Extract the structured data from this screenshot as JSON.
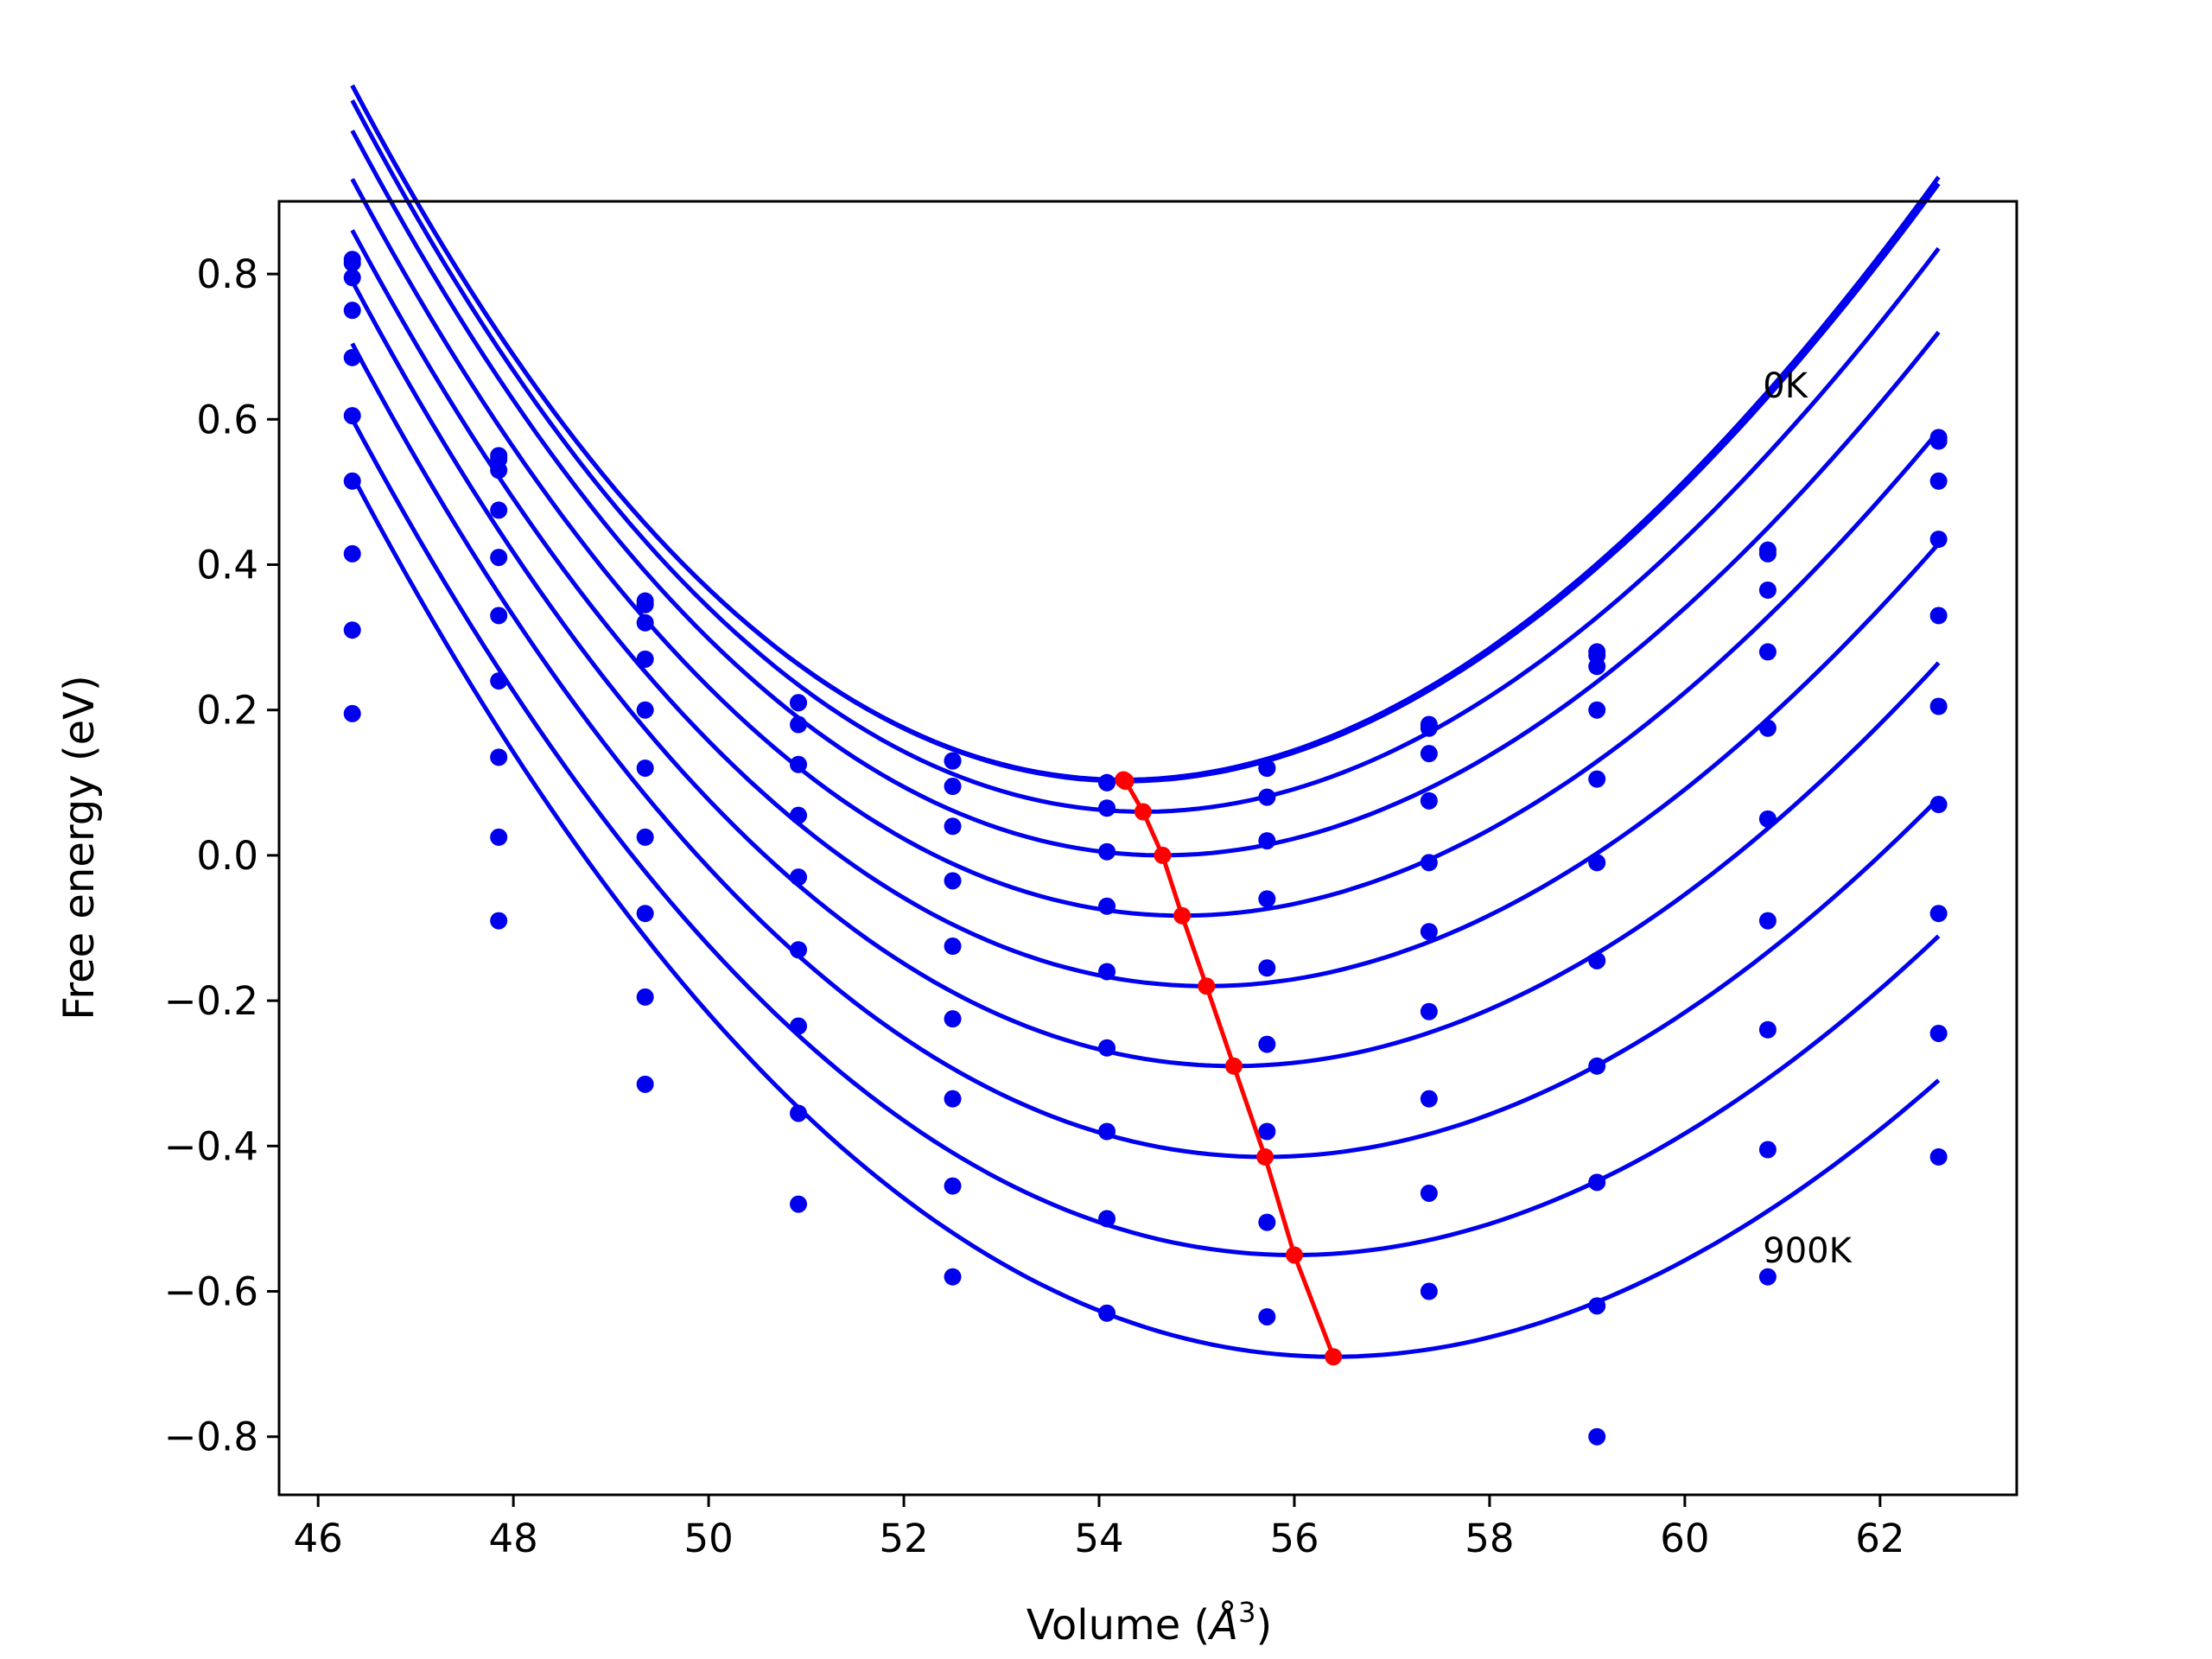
{
  "chart_data": {
    "type": "line",
    "title": "",
    "xlabel": "Volume (",
    "xlabel_unit": "Å",
    "xlabel_exp": "3",
    "xlabel_close": ")",
    "ylabel": "Free energy (eV)",
    "xlim": [
      45.6,
      63.4
    ],
    "ylim": [
      -0.88,
      0.9
    ],
    "xticks": [
      46,
      48,
      50,
      52,
      54,
      56,
      58,
      60,
      62
    ],
    "xtick_labels": [
      "46",
      "48",
      "50",
      "52",
      "54",
      "56",
      "58",
      "60",
      "62"
    ],
    "yticks": [
      -0.8,
      -0.6,
      -0.4,
      -0.2,
      0.0,
      0.2,
      0.4,
      0.6,
      0.8
    ],
    "ytick_labels": [
      "−0.8",
      "−0.6",
      "−0.4",
      "−0.2",
      "0.0",
      "0.2",
      "0.4",
      "0.6",
      "0.8"
    ],
    "grid": false,
    "annotations": [
      {
        "text": "0K",
        "x": 60.8,
        "y": 0.63
      },
      {
        "text": "900K",
        "x": 60.8,
        "y": -0.56
      }
    ],
    "volumes": [
      46.35,
      47.85,
      49.35,
      50.92,
      52.5,
      54.08,
      55.72,
      57.38,
      59.1,
      60.85,
      62.6
    ],
    "series": [
      {
        "values": [
          0.82,
          0.55,
          0.35,
          0.21,
          0.13,
          0.1,
          0.12,
          0.18,
          0.28,
          0.42,
          0.575
        ],
        "fit": {
          "v0": 54.25,
          "e0": 0.104,
          "b2": 0.01365,
          "b3": 0.00021
        }
      },
      {
        "values": [
          0.815,
          0.545,
          0.345,
          0.21,
          0.13,
          0.1,
          0.12,
          0.175,
          0.275,
          0.415,
          0.57
        ],
        "fit": {
          "v0": 54.27,
          "e0": 0.102,
          "b2": 0.0136,
          "b3": 0.00021
        }
      },
      {
        "values": [
          0.795,
          0.53,
          0.32,
          0.18,
          0.095,
          0.065,
          0.08,
          0.14,
          0.26,
          0.365,
          0.515
        ],
        "fit": {
          "v0": 54.45,
          "e0": 0.06,
          "b2": 0.0133,
          "b3": 0.0002
        }
      },
      {
        "values": [
          0.75,
          0.475,
          0.27,
          0.125,
          0.04,
          0.005,
          0.02,
          0.075,
          0.2,
          0.28,
          0.435
        ],
        "fit": {
          "v0": 54.65,
          "e0": 0.0,
          "b2": 0.0129,
          "b3": 0.00019
        }
      },
      {
        "values": [
          0.685,
          0.41,
          0.2,
          0.055,
          -0.035,
          -0.07,
          -0.06,
          -0.01,
          0.105,
          0.175,
          0.33
        ],
        "fit": {
          "v0": 54.85,
          "e0": -0.083,
          "b2": 0.0125,
          "b3": 0.00018
        }
      },
      {
        "values": [
          0.605,
          0.33,
          0.12,
          -0.03,
          -0.125,
          -0.16,
          -0.155,
          -0.105,
          -0.01,
          0.05,
          0.205
        ],
        "fit": {
          "v0": 55.1,
          "e0": -0.18,
          "b2": 0.0121,
          "b3": 0.00017
        }
      },
      {
        "values": [
          0.515,
          0.24,
          0.025,
          -0.13,
          -0.225,
          -0.265,
          -0.26,
          -0.215,
          -0.145,
          -0.09,
          0.07
        ],
        "fit": {
          "v0": 55.38,
          "e0": -0.29,
          "b2": 0.0118,
          "b3": 0.00016
        }
      },
      {
        "values": [
          0.415,
          0.135,
          -0.08,
          -0.235,
          -0.335,
          -0.38,
          -0.38,
          -0.335,
          -0.29,
          -0.24,
          -0.08
        ],
        "fit": {
          "v0": 55.7,
          "e0": -0.415,
          "b2": 0.0114,
          "b3": 0.00015
        }
      },
      {
        "values": [
          0.31,
          0.025,
          -0.195,
          -0.355,
          -0.455,
          -0.5,
          -0.505,
          -0.465,
          -0.45,
          -0.405,
          -0.245
        ],
        "fit": {
          "v0": 56.0,
          "e0": -0.55,
          "b2": 0.011,
          "b3": 0.00014
        }
      },
      {
        "values": [
          0.195,
          -0.09,
          -0.315,
          -0.48,
          -0.58,
          -0.63,
          -0.635,
          -0.6,
          -0.62,
          -0.58,
          -0.415
        ],
        "fit": {
          "v0": 56.4,
          "e0": -0.69,
          "b2": 0.0107,
          "b3": 0.00013
        }
      }
    ],
    "extra_points": [
      {
        "x": 59.1,
        "y": -0.8
      }
    ],
    "minima_line": {
      "color": "#ff0000",
      "x": [
        54.25,
        54.27,
        54.45,
        54.65,
        54.85,
        55.1,
        55.38,
        55.7,
        56.0,
        56.4
      ],
      "y": [
        0.104,
        0.102,
        0.06,
        0.0,
        -0.083,
        -0.18,
        -0.29,
        -0.415,
        -0.55,
        -0.69
      ]
    },
    "colors": {
      "series": "#0000ee",
      "minima": "#ff0000"
    }
  }
}
